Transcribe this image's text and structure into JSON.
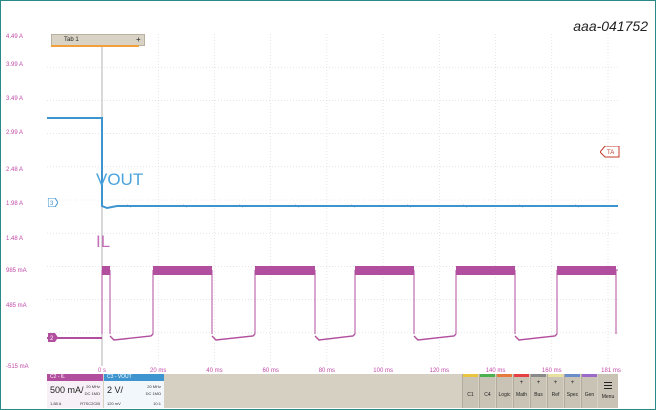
{
  "figure_ref": "aaa-041752",
  "tab": {
    "name": "Tab 1",
    "add": "+"
  },
  "traces": {
    "vout_label": "VOUT",
    "il_label": "IL",
    "vout_color": "#3d94cf",
    "il_color": "#b24e9e"
  },
  "y_axis_labels": [
    "4.49 A",
    "3.99 A",
    "3.49 A",
    "2.99 A",
    "2.48 A",
    "1.98 A",
    "1.48 A",
    "985 mA",
    "485 mA",
    "-515 mA"
  ],
  "x_axis_labels": [
    "0 s",
    "20 ms",
    "40 ms",
    "60 ms",
    "80 ms",
    "100 ms",
    "120 ms",
    "140 ms",
    "160 ms",
    "181 ms"
  ],
  "markers": {
    "trigger": "TA",
    "vout_ref": "3",
    "il_ref": "2"
  },
  "channels": {
    "ch2": {
      "name": "C2 - IL",
      "scale": "500 mA/",
      "offset": "1.88 A",
      "bw": "20 MHz",
      "coupling": "DC 1MΩ",
      "probe": "RTSC2CIB"
    },
    "ch3": {
      "name": "C3 - VOUT",
      "scale": "2 V/",
      "offset": "120 mV",
      "bw": "20 MHz",
      "coupling": "DC 1MΩ",
      "ratio": "10:1"
    }
  },
  "toolbar": {
    "buttons": [
      "C1",
      "C4",
      "Logic",
      "Math",
      "Bus",
      "Ref",
      "Spec",
      "Gen"
    ],
    "menu": "Menu"
  },
  "chart_data": {
    "type": "line",
    "x_unit": "ms",
    "xlim": [
      0,
      181
    ],
    "series": [
      {
        "name": "VOUT",
        "kind": "step",
        "before_trigger": "high",
        "after_trigger": "low steady"
      },
      {
        "name": "IL",
        "kind": "pulsed",
        "period_ms": 37,
        "pulse_ms": 20,
        "high_level": "985 mA",
        "low_level": "near 0"
      }
    ]
  }
}
